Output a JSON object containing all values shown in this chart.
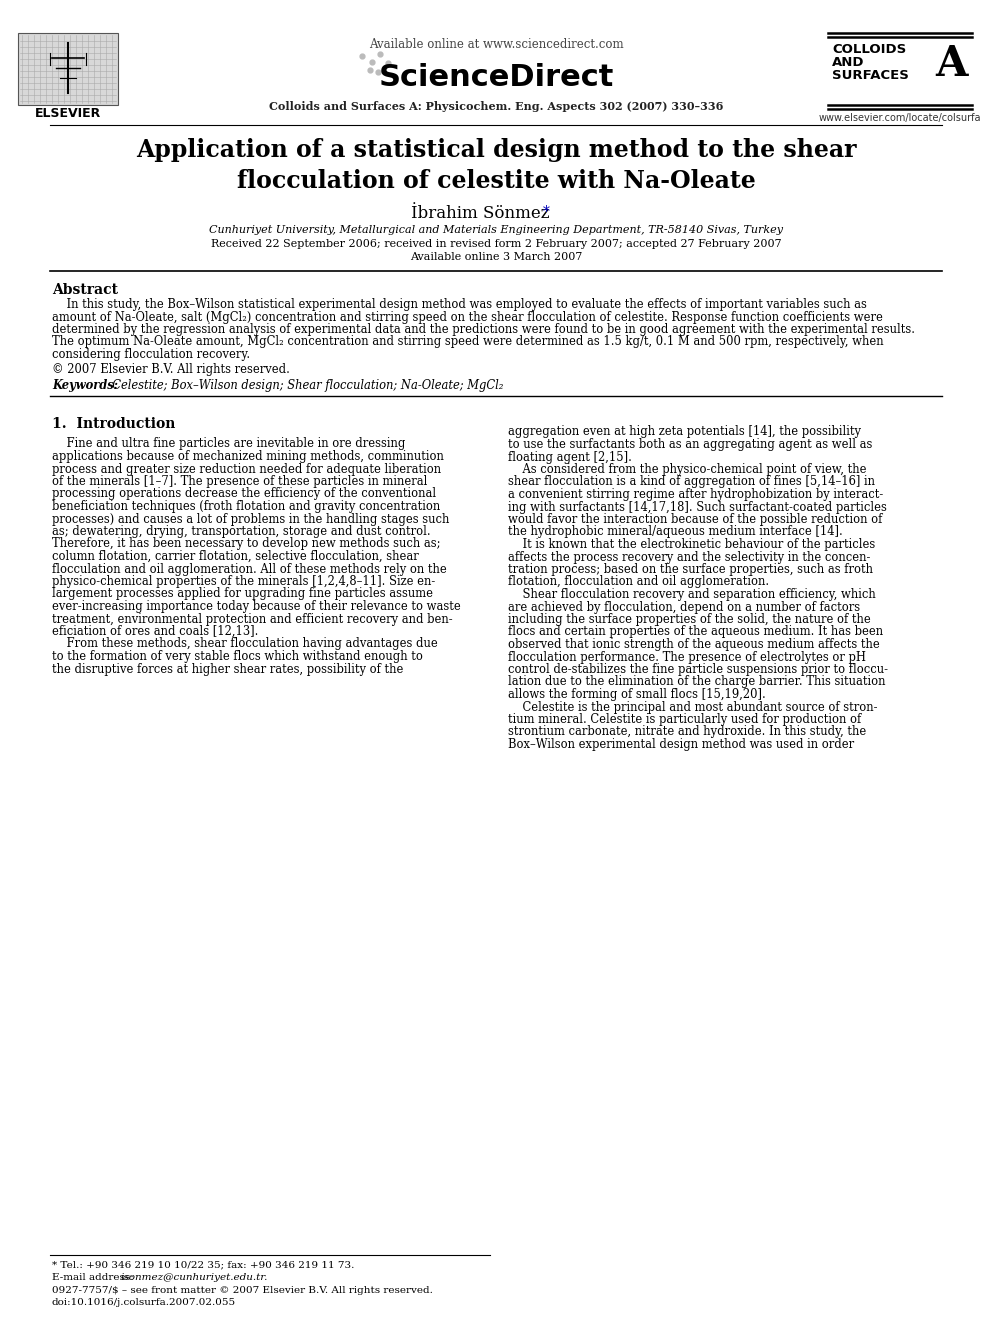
{
  "background_color": "#ffffff",
  "available_online": "Available online at www.sciencedirect.com",
  "journal_info": "Colloids and Surfaces A: Physicochem. Eng. Aspects 302 (2007) 330–336",
  "colloids1": "COLLOIDS",
  "colloids2": "AND",
  "colloids3": "SURFACES",
  "colloids_a": "A",
  "website": "www.elsevier.com/locate/colsurfa",
  "elsevier_label": "ELSEVIER",
  "sciencedirect": "ScienceDirect",
  "title": "Application of a statistical design method to the shear\nflocculation of celestite with Na-Oleate",
  "author": "İbrahim Sönmez",
  "author_star": "*",
  "affiliation": "Cunhuriyet University, Metallurgical and Materials Engineering Department, TR-58140 Sivas, Turkey",
  "received": "Received 22 September 2006; received in revised form 2 February 2007; accepted 27 February 2007",
  "available": "Available online 3 March 2007",
  "abstract_title": "Abstract",
  "abs_lines": [
    "    In this study, the Box–Wilson statistical experimental design method was employed to evaluate the effects of important variables such as",
    "amount of Na-Oleate, salt (MgCl₂) concentration and stirring speed on the shear flocculation of celestite. Response function coefficients were",
    "determined by the regression analysis of experimental data and the predictions were found to be in good agreement with the experimental results.",
    "The optimum Na-Oleate amount, MgCl₂ concentration and stirring speed were determined as 1.5 kg/t, 0.1 M and 500 rpm, respectively, when",
    "considering flocculation recovery."
  ],
  "copyright": "© 2007 Elsevier B.V. All rights reserved.",
  "keywords_label": "Keywords:",
  "keywords": "  Celestite; Box–Wilson design; Shear flocculation; Na-Oleate; MgCl₂",
  "section1_title": "1.  Introduction",
  "intro1_lines": [
    "    Fine and ultra fine particles are inevitable in ore dressing",
    "applications because of mechanized mining methods, comminution",
    "process and greater size reduction needed for adequate liberation",
    "of the minerals [1–7]. The presence of these particles in mineral",
    "processing operations decrease the efficiency of the conventional",
    "beneficiation techniques (froth flotation and gravity concentration",
    "processes) and causes a lot of problems in the handling stages such",
    "as; dewatering, drying, transportation, storage and dust control.",
    "Therefore, it has been necessary to develop new methods such as;",
    "column flotation, carrier flotation, selective flocculation, shear",
    "flocculation and oil agglomeration. All of these methods rely on the",
    "physico-chemical properties of the minerals [1,2,4,8–11]. Size en-",
    "largement processes applied for upgrading fine particles assume",
    "ever-increasing importance today because of their relevance to waste",
    "treatment, environmental protection and efficient recovery and ben-",
    "eficiation of ores and coals [12,13].",
    "    From these methods, shear flocculation having advantages due",
    "to the formation of very stable flocs which withstand enough to",
    "the disruptive forces at higher shear rates, possibility of the"
  ],
  "intro2_lines": [
    "aggregation even at high zeta potentials [14], the possibility",
    "to use the surfactants both as an aggregating agent as well as",
    "floating agent [2,15].",
    "    As considered from the physico-chemical point of view, the",
    "shear flocculation is a kind of aggregation of fines [5,14–16] in",
    "a convenient stirring regime after hydrophobization by interact-",
    "ing with surfactants [14,17,18]. Such surfactant-coated particles",
    "would favor the interaction because of the possible reduction of",
    "the hydrophobic mineral/aqueous medium interface [14].",
    "    It is known that the electrokinetic behaviour of the particles",
    "affects the process recovery and the selectivity in the concen-",
    "tration process; based on the surface properties, such as froth",
    "flotation, flocculation and oil agglomeration.",
    "    Shear flocculation recovery and separation efficiency, which",
    "are achieved by flocculation, depend on a number of factors",
    "including the surface properties of the solid, the nature of the",
    "flocs and certain properties of the aqueous medium. It has been",
    "observed that ionic strength of the aqueous medium affects the",
    "flocculation performance. The presence of electrolytes or pH",
    "control de-stabilizes the fine particle suspensions prior to floccu-",
    "lation due to the elimination of the charge barrier. This situation",
    "allows the forming of small flocs [15,19,20].",
    "    Celestite is the principal and most abundant source of stron-",
    "tium mineral. Celestite is particularly used for production of",
    "strontium carbonate, nitrate and hydroxide. In this study, the",
    "Box–Wilson experimental design method was used in order"
  ],
  "footnote_star": "* Tel.: +90 346 219 10 10/22 35; fax: +90 346 219 11 73.",
  "footnote_email_label": "E-mail address: ",
  "footnote_email": "isonmez@cunhuriyet.edu.tr.",
  "footnote_issn": "0927-7757/$ – see front matter © 2007 Elsevier B.V. All rights reserved.",
  "footnote_doi": "doi:10.1016/j.colsurfa.2007.02.055",
  "line_color": "#000000",
  "text_color": "#000000",
  "ref_color": "#000080"
}
